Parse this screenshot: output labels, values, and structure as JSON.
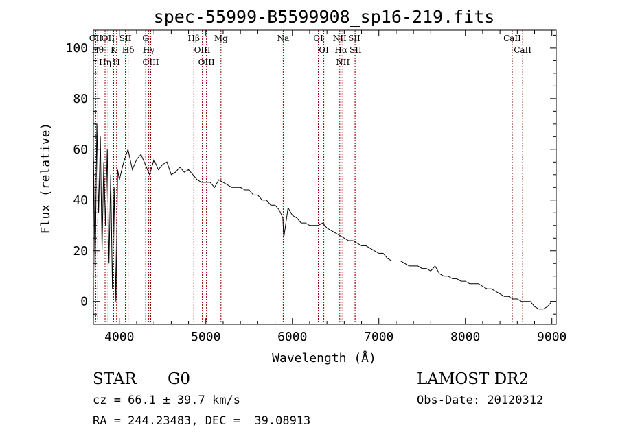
{
  "chart_data": {
    "type": "line",
    "title": "spec-55999-B5599908_sp16-219.fits",
    "xlabel": "Wavelength (Å)",
    "ylabel": "Flux (relative)",
    "xlim": [
      3700,
      9050
    ],
    "ylim": [
      -9,
      107
    ],
    "xticks": [
      4000,
      5000,
      6000,
      7000,
      8000,
      9000
    ],
    "yticks": [
      0,
      20,
      40,
      60,
      80,
      100
    ],
    "grid": false,
    "series": [
      {
        "x": [
          3700,
          3720,
          3740,
          3760,
          3780,
          3800,
          3820,
          3840,
          3860,
          3880,
          3900,
          3920,
          3940,
          3960,
          3980,
          4000,
          4050,
          4100,
          4150,
          4200,
          4250,
          4300,
          4350,
          4400,
          4450,
          4500,
          4550,
          4600,
          4650,
          4700,
          4750,
          4800,
          4850,
          4900,
          4950,
          5000,
          5050,
          5100,
          5150,
          5200,
          5250,
          5300,
          5350,
          5400,
          5450,
          5500,
          5550,
          5600,
          5650,
          5700,
          5750,
          5800,
          5850,
          5890,
          5900,
          5950,
          6000,
          6050,
          6100,
          6150,
          6200,
          6250,
          6300,
          6350,
          6400,
          6450,
          6500,
          6550,
          6600,
          6650,
          6700,
          6750,
          6800,
          6850,
          6900,
          6950,
          7000,
          7050,
          7100,
          7150,
          7200,
          7250,
          7300,
          7350,
          7400,
          7450,
          7500,
          7550,
          7600,
          7650,
          7700,
          7750,
          7800,
          7850,
          7900,
          7950,
          8000,
          8050,
          8100,
          8150,
          8200,
          8250,
          8300,
          8350,
          8400,
          8450,
          8500,
          8550,
          8600,
          8650,
          8700,
          8750,
          8800,
          8850,
          8900,
          8950,
          9000,
          9050
        ],
        "y": [
          60,
          10,
          70,
          35,
          65,
          20,
          55,
          30,
          60,
          15,
          50,
          5,
          45,
          0,
          52,
          48,
          55,
          60,
          52,
          56,
          58,
          54,
          50,
          56,
          52,
          54,
          55,
          50,
          51,
          53,
          51,
          52,
          50,
          48,
          47,
          47,
          47,
          45,
          48,
          47,
          46,
          45,
          45,
          45,
          44,
          44,
          42,
          42,
          40,
          40,
          38,
          38,
          36,
          33,
          25,
          37,
          34,
          33,
          31,
          31,
          30,
          30,
          30,
          31,
          29,
          28,
          27,
          26,
          25,
          24,
          24,
          23,
          22,
          22,
          21,
          20,
          19,
          19,
          17,
          16,
          16,
          16,
          15,
          14,
          14,
          14,
          13,
          13,
          12,
          14,
          11,
          10,
          10,
          9,
          9,
          8,
          8,
          7,
          7,
          7,
          6,
          5,
          5,
          4,
          3,
          2,
          2,
          1,
          1,
          0,
          0,
          0,
          -2,
          -3,
          -3,
          -2,
          0,
          0
        ]
      }
    ],
    "spectral_lines": [
      {
        "wave": 3727,
        "label": "OII"
      },
      {
        "wave": 3750,
        "label": "Hθ"
      },
      {
        "wave": 3835,
        "label": "Hη"
      },
      {
        "wave": 3869,
        "label": "OII"
      },
      {
        "wave": 3934,
        "label": "K"
      },
      {
        "wave": 3968,
        "label": "H"
      },
      {
        "wave": 4070,
        "label": "SII"
      },
      {
        "wave": 4102,
        "label": "Hδ"
      },
      {
        "wave": 4304,
        "label": "G"
      },
      {
        "wave": 4340,
        "label": "Hγ"
      },
      {
        "wave": 4363,
        "label": "OIII"
      },
      {
        "wave": 4861,
        "label": "Hβ"
      },
      {
        "wave": 4959,
        "label": "OIII"
      },
      {
        "wave": 5007,
        "label": "OIII"
      },
      {
        "wave": 5175,
        "label": "Mg"
      },
      {
        "wave": 5894,
        "label": "Na"
      },
      {
        "wave": 6300,
        "label": "OI"
      },
      {
        "wave": 6364,
        "label": "OI"
      },
      {
        "wave": 6548,
        "label": "NII"
      },
      {
        "wave": 6563,
        "label": "Hα"
      },
      {
        "wave": 6583,
        "label": "NII"
      },
      {
        "wave": 6716,
        "label": "SII"
      },
      {
        "wave": 6731,
        "label": "SII"
      },
      {
        "wave": 8542,
        "label": "CaII"
      },
      {
        "wave": 8662,
        "label": "CaII"
      }
    ]
  },
  "info": {
    "class_label": "STAR",
    "subclass_label": "G0",
    "survey": "LAMOST DR2",
    "redshift": "cz = 66.1 ± 39.7 km/s",
    "obs_date": "Obs-Date: 20120312",
    "coords": "RA = 244.23483, DEC =  39.08913"
  },
  "colors": {
    "spectrum": "#000000",
    "line_marker": "#8b0000",
    "background": "#ffffff"
  }
}
